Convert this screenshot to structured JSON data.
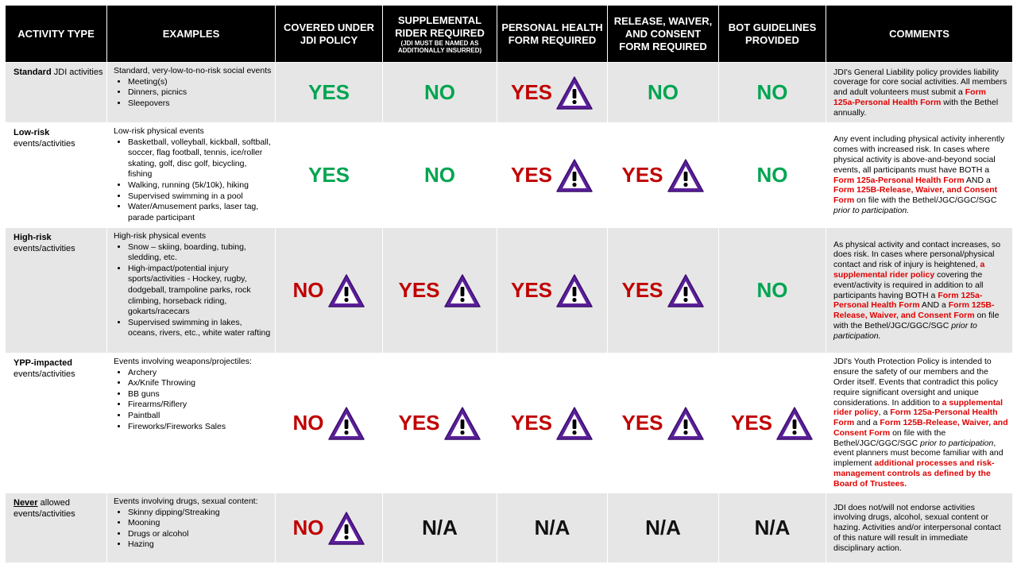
{
  "table": {
    "headers": [
      {
        "title": "ACTIVITY TYPE"
      },
      {
        "title": "EXAMPLES"
      },
      {
        "title": "COVERED UNDER JDI POLICY"
      },
      {
        "title": "SUPPLEMENTAL RIDER REQUIRED",
        "note": "(JDI MUST BE NAMED AS ADDITIONALLY INSURRED)"
      },
      {
        "title": "PERSONAL HEALTH FORM REQUIRED"
      },
      {
        "title": "RELEASE, WAIVER, AND CONSENT FORM REQUIRED"
      },
      {
        "title": "BOT GUIDELINES PROVIDED"
      },
      {
        "title": "COMMENTS"
      }
    ],
    "rows": [
      {
        "activity": {
          "bold": "Standard",
          "rest": "JDI activities"
        },
        "examples": {
          "intro": "Standard, very-low-to-no-risk social events",
          "items": [
            "Meeting(s)",
            "Dinners, picnics",
            "Sleepovers"
          ]
        },
        "statuses": [
          {
            "text": "YES",
            "color": "#00a550",
            "warning": false
          },
          {
            "text": "NO",
            "color": "#00a550",
            "warning": false
          },
          {
            "text": "YES",
            "color": "#c00000",
            "warning": true
          },
          {
            "text": "NO",
            "color": "#00a550",
            "warning": false
          },
          {
            "text": "NO",
            "color": "#00a550",
            "warning": false
          }
        ],
        "comment": [
          {
            "text": "JDI's General Liability policy provides liability coverage for core social activities. All members and adult volunteers must submit a ",
            "style": "normal"
          },
          {
            "text": "Form 125a-Personal Health Form",
            "style": "red"
          },
          {
            "text": " with the Bethel annually.",
            "style": "normal"
          }
        ]
      },
      {
        "activity": {
          "bold": "Low-risk",
          "rest": "events/activities"
        },
        "examples": {
          "intro": "Low-risk physical events",
          "items": [
            "Basketball, volleyball, kickball, softball, soccer, flag football, tennis, ice/roller skating, golf, disc golf, bicycling, fishing",
            "Walking, running (5k/10k), hiking",
            "Supervised swimming in a pool",
            "Water/Amusement parks, laser tag, parade participant"
          ]
        },
        "statuses": [
          {
            "text": "YES",
            "color": "#00a550",
            "warning": false
          },
          {
            "text": "NO",
            "color": "#00a550",
            "warning": false
          },
          {
            "text": "YES",
            "color": "#c00000",
            "warning": true
          },
          {
            "text": "YES",
            "color": "#c00000",
            "warning": true
          },
          {
            "text": "NO",
            "color": "#00a550",
            "warning": false
          }
        ],
        "comment": [
          {
            "text": "Any event including physical activity inherently comes with increased risk. In cases where physical activity is above-and-beyond social events, all participants must have BOTH a ",
            "style": "normal"
          },
          {
            "text": "Form 125a-Personal Health Form",
            "style": "red"
          },
          {
            "text": " AND a ",
            "style": "normal"
          },
          {
            "text": "Form 125B-Release, Waiver, and Consent Form",
            "style": "red"
          },
          {
            "text": " on file with the Bethel/JGC/GGC/SGC ",
            "style": "normal"
          },
          {
            "text": "prior to participation.",
            "style": "italic"
          }
        ]
      },
      {
        "activity": {
          "bold": "High-risk",
          "rest": "events/activities"
        },
        "examples": {
          "intro": "High-risk physical events",
          "items": [
            "Snow – skiing, boarding, tubing, sledding, etc.",
            "High-impact/potential injury sports/activities - Hockey, rugby, dodgeball, trampoline parks, rock climbing, horseback riding, gokarts/racecars",
            "Supervised swimming in lakes, oceans, rivers, etc., white water rafting"
          ]
        },
        "statuses": [
          {
            "text": "NO",
            "color": "#c00000",
            "warning": true
          },
          {
            "text": "YES",
            "color": "#c00000",
            "warning": true
          },
          {
            "text": "YES",
            "color": "#c00000",
            "warning": true
          },
          {
            "text": "YES",
            "color": "#c00000",
            "warning": true
          },
          {
            "text": "NO",
            "color": "#00a550",
            "warning": false
          }
        ],
        "comment": [
          {
            "text": "As physical activity and contact increases, so does risk. In cases where personal/physical contact and risk of injury is heightened, ",
            "style": "normal"
          },
          {
            "text": "a supplemental rider policy",
            "style": "red"
          },
          {
            "text": " covering the event/activity is required in addition to all participants having BOTH a ",
            "style": "normal"
          },
          {
            "text": "Form 125a-Personal Health Form",
            "style": "red"
          },
          {
            "text": " AND a ",
            "style": "normal"
          },
          {
            "text": "Form 125B-Release, Waiver, and Consent Form",
            "style": "red"
          },
          {
            "text": " on file with the Bethel/JGC/GGC/SGC ",
            "style": "normal"
          },
          {
            "text": "prior to participation.",
            "style": "italic"
          }
        ]
      },
      {
        "activity": {
          "bold": "YPP-impacted",
          "rest": "events/activities"
        },
        "examples": {
          "intro": "Events involving weapons/projectiles:",
          "items": [
            "Archery",
            "Ax/Knife Throwing",
            "BB guns",
            "Firearms/Riflery",
            "Paintball",
            "Fireworks/Fireworks Sales"
          ]
        },
        "statuses": [
          {
            "text": "NO",
            "color": "#c00000",
            "warning": true
          },
          {
            "text": "YES",
            "color": "#c00000",
            "warning": true
          },
          {
            "text": "YES",
            "color": "#c00000",
            "warning": true
          },
          {
            "text": "YES",
            "color": "#c00000",
            "warning": true
          },
          {
            "text": "YES",
            "color": "#c00000",
            "warning": true
          }
        ],
        "comment": [
          {
            "text": "JDI's Youth Protection Policy is intended to ensure the safety of our members and the Order itself. Events that contradict this policy require significant oversight and unique considerations. In addition to ",
            "style": "normal"
          },
          {
            "text": "a supplemental rider policy",
            "style": "red"
          },
          {
            "text": ", a ",
            "style": "normal"
          },
          {
            "text": "Form 125a-Personal Health Form",
            "style": "red"
          },
          {
            "text": " and a ",
            "style": "normal"
          },
          {
            "text": "Form 125B-Release, Waiver, and Consent Form",
            "style": "red"
          },
          {
            "text": " on file with the Bethel/JGC/GGC/SGC ",
            "style": "normal"
          },
          {
            "text": "prior to participation",
            "style": "italic"
          },
          {
            "text": ", event planners must become familiar with and implement ",
            "style": "normal"
          },
          {
            "text": "additional processes and risk-management controls as defined by the Board of Trustees.",
            "style": "red"
          }
        ]
      },
      {
        "activity": {
          "bold": "Never",
          "rest": "allowed events/activities",
          "underline": true
        },
        "examples": {
          "intro": "Events involving drugs, sexual content:",
          "items": [
            "Skinny dipping/Streaking",
            "Mooning",
            "Drugs or alcohol",
            "Hazing"
          ]
        },
        "statuses": [
          {
            "text": "NO",
            "color": "#c00000",
            "warning": true
          },
          {
            "text": "N/A",
            "color": "#111111",
            "warning": false
          },
          {
            "text": "N/A",
            "color": "#111111",
            "warning": false
          },
          {
            "text": "N/A",
            "color": "#111111",
            "warning": false
          },
          {
            "text": "N/A",
            "color": "#111111",
            "warning": false
          }
        ],
        "comment": [
          {
            "text": "JDI does not/will not endorse activities involving drugs, alcohol, sexual content or hazing. Activities and/or interpersonal contact of this nature will result in immediate disciplinary action.",
            "style": "normal"
          }
        ]
      }
    ]
  }
}
